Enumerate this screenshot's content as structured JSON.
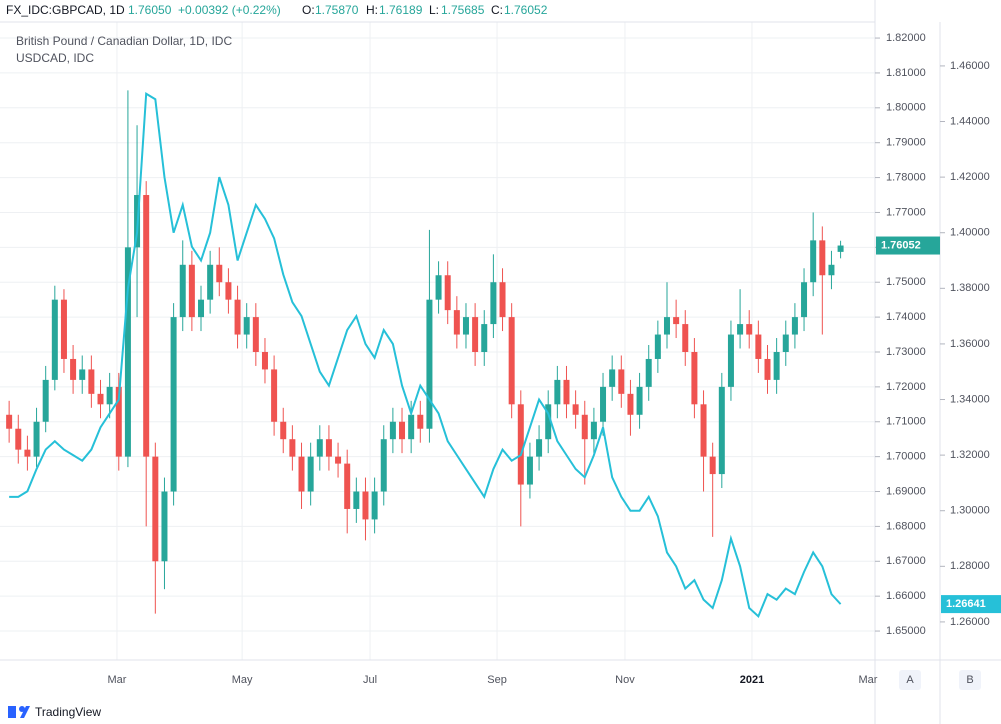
{
  "header": {
    "symbol": "FX_IDC:GBPCAD, 1D",
    "price": "1.76050",
    "change": "+0.00392 (+0.22%)",
    "open_label": "O:",
    "open": "1.75870",
    "high_label": "H:",
    "high": "1.76189",
    "low_label": "L:",
    "low": "1.75685",
    "close_label": "C:",
    "close": "1.76052"
  },
  "footer": {
    "brand": "TradingView",
    "button_a": "A",
    "button_b": "B"
  },
  "chart_data": {
    "type": "candlestick",
    "series": [
      {
        "name": "British Pound / Canadian Dollar, 1D, IDC",
        "type": "candlestick",
        "color_up": "#26a69a",
        "color_down": "#ef5350",
        "ohlc": [
          [
            1.712,
            1.716,
            1.704,
            1.708
          ],
          [
            1.708,
            1.712,
            1.698,
            1.702
          ],
          [
            1.702,
            1.706,
            1.696,
            1.7
          ],
          [
            1.7,
            1.714,
            1.697,
            1.71
          ],
          [
            1.71,
            1.726,
            1.707,
            1.722
          ],
          [
            1.722,
            1.749,
            1.719,
            1.745
          ],
          [
            1.745,
            1.748,
            1.724,
            1.728
          ],
          [
            1.728,
            1.732,
            1.718,
            1.722
          ],
          [
            1.722,
            1.729,
            1.718,
            1.725
          ],
          [
            1.725,
            1.729,
            1.714,
            1.718
          ],
          [
            1.718,
            1.722,
            1.711,
            1.715
          ],
          [
            1.715,
            1.724,
            1.711,
            1.72
          ],
          [
            1.72,
            1.724,
            1.696,
            1.7
          ],
          [
            1.7,
            1.805,
            1.697,
            1.76
          ],
          [
            1.76,
            1.795,
            1.74,
            1.775
          ],
          [
            1.775,
            1.779,
            1.68,
            1.7
          ],
          [
            1.7,
            1.704,
            1.655,
            1.67
          ],
          [
            1.67,
            1.694,
            1.662,
            1.69
          ],
          [
            1.69,
            1.744,
            1.686,
            1.74
          ],
          [
            1.74,
            1.762,
            1.736,
            1.755
          ],
          [
            1.755,
            1.759,
            1.736,
            1.74
          ],
          [
            1.74,
            1.749,
            1.736,
            1.745
          ],
          [
            1.745,
            1.759,
            1.741,
            1.755
          ],
          [
            1.755,
            1.76,
            1.746,
            1.75
          ],
          [
            1.75,
            1.754,
            1.741,
            1.745
          ],
          [
            1.745,
            1.749,
            1.731,
            1.735
          ],
          [
            1.735,
            1.744,
            1.731,
            1.74
          ],
          [
            1.74,
            1.744,
            1.726,
            1.73
          ],
          [
            1.73,
            1.734,
            1.721,
            1.725
          ],
          [
            1.725,
            1.729,
            1.706,
            1.71
          ],
          [
            1.71,
            1.714,
            1.701,
            1.705
          ],
          [
            1.705,
            1.709,
            1.696,
            1.7
          ],
          [
            1.7,
            1.704,
            1.685,
            1.69
          ],
          [
            1.69,
            1.704,
            1.686,
            1.7
          ],
          [
            1.7,
            1.709,
            1.696,
            1.705
          ],
          [
            1.705,
            1.709,
            1.696,
            1.7
          ],
          [
            1.7,
            1.704,
            1.694,
            1.698
          ],
          [
            1.698,
            1.702,
            1.678,
            1.685
          ],
          [
            1.685,
            1.694,
            1.681,
            1.69
          ],
          [
            1.69,
            1.694,
            1.676,
            1.682
          ],
          [
            1.682,
            1.694,
            1.678,
            1.69
          ],
          [
            1.69,
            1.709,
            1.686,
            1.705
          ],
          [
            1.705,
            1.714,
            1.701,
            1.71
          ],
          [
            1.71,
            1.714,
            1.701,
            1.705
          ],
          [
            1.705,
            1.716,
            1.701,
            1.712
          ],
          [
            1.712,
            1.716,
            1.704,
            1.708
          ],
          [
            1.708,
            1.765,
            1.704,
            1.745
          ],
          [
            1.745,
            1.756,
            1.741,
            1.752
          ],
          [
            1.752,
            1.756,
            1.738,
            1.742
          ],
          [
            1.742,
            1.746,
            1.731,
            1.735
          ],
          [
            1.735,
            1.744,
            1.731,
            1.74
          ],
          [
            1.74,
            1.744,
            1.726,
            1.73
          ],
          [
            1.73,
            1.742,
            1.726,
            1.738
          ],
          [
            1.738,
            1.758,
            1.734,
            1.75
          ],
          [
            1.75,
            1.754,
            1.736,
            1.74
          ],
          [
            1.74,
            1.744,
            1.711,
            1.715
          ],
          [
            1.715,
            1.719,
            1.68,
            1.692
          ],
          [
            1.692,
            1.704,
            1.688,
            1.7
          ],
          [
            1.7,
            1.709,
            1.696,
            1.705
          ],
          [
            1.705,
            1.719,
            1.701,
            1.715
          ],
          [
            1.715,
            1.726,
            1.711,
            1.722
          ],
          [
            1.722,
            1.726,
            1.711,
            1.715
          ],
          [
            1.715,
            1.719,
            1.708,
            1.712
          ],
          [
            1.712,
            1.716,
            1.692,
            1.705
          ],
          [
            1.705,
            1.714,
            1.701,
            1.71
          ],
          [
            1.71,
            1.724,
            1.706,
            1.72
          ],
          [
            1.72,
            1.729,
            1.716,
            1.725
          ],
          [
            1.725,
            1.729,
            1.714,
            1.718
          ],
          [
            1.718,
            1.722,
            1.706,
            1.712
          ],
          [
            1.712,
            1.724,
            1.708,
            1.72
          ],
          [
            1.72,
            1.732,
            1.716,
            1.728
          ],
          [
            1.728,
            1.739,
            1.724,
            1.735
          ],
          [
            1.735,
            1.75,
            1.731,
            1.74
          ],
          [
            1.74,
            1.745,
            1.734,
            1.738
          ],
          [
            1.738,
            1.742,
            1.726,
            1.73
          ],
          [
            1.73,
            1.734,
            1.711,
            1.715
          ],
          [
            1.715,
            1.719,
            1.69,
            1.7
          ],
          [
            1.7,
            1.704,
            1.677,
            1.695
          ],
          [
            1.695,
            1.724,
            1.691,
            1.72
          ],
          [
            1.72,
            1.739,
            1.716,
            1.735
          ],
          [
            1.735,
            1.748,
            1.731,
            1.738
          ],
          [
            1.738,
            1.742,
            1.731,
            1.735
          ],
          [
            1.735,
            1.739,
            1.724,
            1.728
          ],
          [
            1.728,
            1.732,
            1.718,
            1.722
          ],
          [
            1.722,
            1.734,
            1.718,
            1.73
          ],
          [
            1.73,
            1.739,
            1.726,
            1.735
          ],
          [
            1.735,
            1.744,
            1.731,
            1.74
          ],
          [
            1.74,
            1.754,
            1.736,
            1.75
          ],
          [
            1.75,
            1.77,
            1.746,
            1.762
          ],
          [
            1.762,
            1.766,
            1.735,
            1.752
          ],
          [
            1.752,
            1.759,
            1.748,
            1.755
          ],
          [
            1.7587,
            1.76189,
            1.75685,
            1.76052
          ]
        ],
        "last": 1.76052,
        "last_color": "#26a69a"
      },
      {
        "name": "USDCAD, IDC",
        "type": "line",
        "axis": "y2",
        "color": "#26c0d8",
        "values": [
          1.305,
          1.305,
          1.307,
          1.315,
          1.322,
          1.325,
          1.322,
          1.32,
          1.318,
          1.322,
          1.33,
          1.335,
          1.34,
          1.38,
          1.4,
          1.45,
          1.448,
          1.42,
          1.4,
          1.41,
          1.395,
          1.39,
          1.4,
          1.42,
          1.41,
          1.39,
          1.4,
          1.41,
          1.405,
          1.398,
          1.385,
          1.375,
          1.37,
          1.36,
          1.35,
          1.345,
          1.355,
          1.365,
          1.37,
          1.36,
          1.355,
          1.365,
          1.36,
          1.345,
          1.335,
          1.345,
          1.34,
          1.335,
          1.325,
          1.32,
          1.315,
          1.31,
          1.305,
          1.315,
          1.322,
          1.318,
          1.32,
          1.33,
          1.34,
          1.335,
          1.325,
          1.32,
          1.315,
          1.312,
          1.32,
          1.33,
          1.312,
          1.305,
          1.3,
          1.3,
          1.305,
          1.298,
          1.285,
          1.28,
          1.272,
          1.275,
          1.268,
          1.265,
          1.275,
          1.29,
          1.28,
          1.265,
          1.262,
          1.27,
          1.268,
          1.272,
          1.27,
          1.278,
          1.285,
          1.28,
          1.27,
          1.2664
        ],
        "last": 1.26641
      }
    ],
    "xlim": [
      -1,
      94
    ],
    "xticks": [
      {
        "value": 11.8,
        "label": "Mar"
      },
      {
        "value": 25.5,
        "label": "May"
      },
      {
        "value": 39.5,
        "label": "Jul"
      },
      {
        "value": 53.4,
        "label": "Sep"
      },
      {
        "value": 67.4,
        "label": "Nov"
      },
      {
        "value": 81.3,
        "label": "2021"
      },
      {
        "value": 94,
        "label": "Mar"
      }
    ],
    "ylim": [
      1.6417,
      1.8246
    ],
    "yticks": [
      {
        "value": 1.65,
        "label": "1.65000"
      },
      {
        "value": 1.66,
        "label": "1.66000"
      },
      {
        "value": 1.67,
        "label": "1.67000"
      },
      {
        "value": 1.68,
        "label": "1.68000"
      },
      {
        "value": 1.69,
        "label": "1.69000"
      },
      {
        "value": 1.7,
        "label": "1.70000"
      },
      {
        "value": 1.71,
        "label": "1.71000"
      },
      {
        "value": 1.72,
        "label": "1.72000"
      },
      {
        "value": 1.73,
        "label": "1.73000"
      },
      {
        "value": 1.74,
        "label": "1.74000"
      },
      {
        "value": 1.75,
        "label": "1.75000"
      },
      {
        "value": 1.76,
        "label": "1.76000"
      },
      {
        "value": 1.77,
        "label": "1.77000"
      },
      {
        "value": 1.78,
        "label": "1.78000"
      },
      {
        "value": 1.79,
        "label": "1.79000"
      },
      {
        "value": 1.8,
        "label": "1.80000"
      },
      {
        "value": 1.81,
        "label": "1.81000"
      },
      {
        "value": 1.82,
        "label": "1.82000"
      }
    ],
    "y2lim": [
      1.2463,
      1.4758
    ],
    "y2ticks": [
      {
        "value": 1.26,
        "label": "1.26000"
      },
      {
        "value": 1.28,
        "label": "1.28000"
      },
      {
        "value": 1.3,
        "label": "1.30000"
      },
      {
        "value": 1.32,
        "label": "1.32000"
      },
      {
        "value": 1.34,
        "label": "1.34000"
      },
      {
        "value": 1.36,
        "label": "1.36000"
      },
      {
        "value": 1.38,
        "label": "1.38000"
      },
      {
        "value": 1.4,
        "label": "1.40000"
      },
      {
        "value": 1.42,
        "label": "1.42000"
      },
      {
        "value": 1.44,
        "label": "1.44000"
      },
      {
        "value": 1.46,
        "label": "1.46000"
      }
    ],
    "grid": true
  }
}
